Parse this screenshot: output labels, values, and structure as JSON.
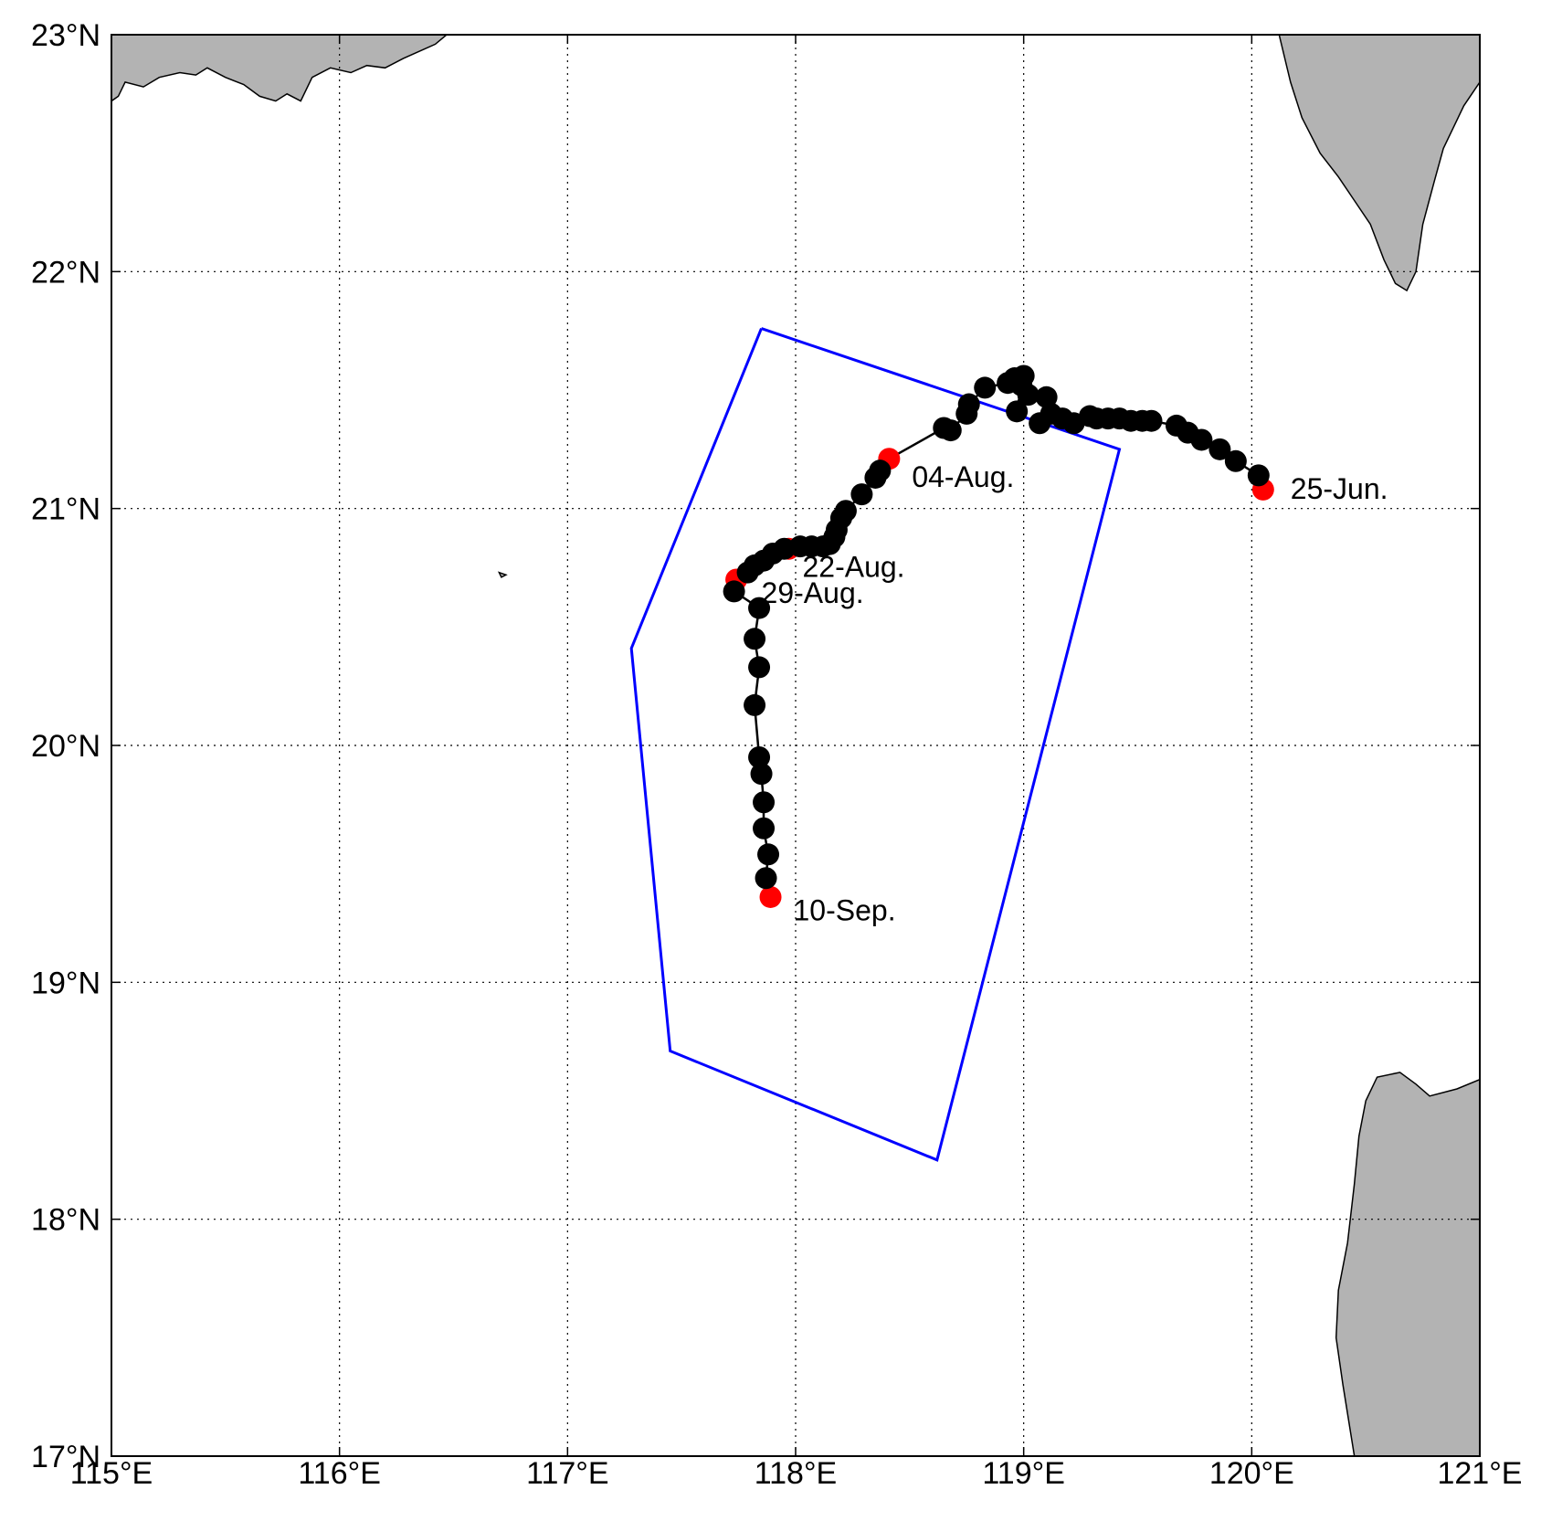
{
  "map": {
    "x_range": [
      115,
      121
    ],
    "y_range": [
      17,
      23
    ],
    "x_ticks": [
      {
        "value": 115,
        "label": "115°E"
      },
      {
        "value": 116,
        "label": "116°E"
      },
      {
        "value": 117,
        "label": "117°E"
      },
      {
        "value": 118,
        "label": "118°E"
      },
      {
        "value": 119,
        "label": "119°E"
      },
      {
        "value": 120,
        "label": "120°E"
      },
      {
        "value": 121,
        "label": "121°E"
      }
    ],
    "y_ticks": [
      {
        "value": 17,
        "label": "17°N"
      },
      {
        "value": 18,
        "label": "18°N"
      },
      {
        "value": 19,
        "label": "19°N"
      },
      {
        "value": 20,
        "label": "20°N"
      },
      {
        "value": 21,
        "label": "21°N"
      },
      {
        "value": 22,
        "label": "22°N"
      },
      {
        "value": 23,
        "label": "23°N"
      }
    ],
    "grid": "dotted",
    "colors": {
      "land": "#b3b3b3",
      "coastline": "#000000",
      "region": "#0000ff",
      "track": "#000000",
      "marker": "#000000",
      "highlight": "#ff0000",
      "grid": "#000000"
    },
    "region_polygon": [
      [
        117.85,
        21.76
      ],
      [
        119.42,
        21.25
      ],
      [
        118.62,
        18.25
      ],
      [
        117.45,
        18.71
      ],
      [
        117.28,
        20.41
      ],
      [
        117.85,
        21.76
      ]
    ],
    "track": [
      [
        120.05,
        21.08
      ],
      [
        120.03,
        21.14
      ],
      [
        119.93,
        21.2
      ],
      [
        119.86,
        21.25
      ],
      [
        119.78,
        21.29
      ],
      [
        119.72,
        21.32
      ],
      [
        119.67,
        21.35
      ],
      [
        119.56,
        21.37
      ],
      [
        119.52,
        21.37
      ],
      [
        119.47,
        21.37
      ],
      [
        119.42,
        21.38
      ],
      [
        119.37,
        21.38
      ],
      [
        119.32,
        21.38
      ],
      [
        119.29,
        21.39
      ],
      [
        119.22,
        21.36
      ],
      [
        119.17,
        21.38
      ],
      [
        119.12,
        21.4
      ],
      [
        119.07,
        21.36
      ],
      [
        119.1,
        21.47
      ],
      [
        119.02,
        21.48
      ],
      [
        118.97,
        21.41
      ],
      [
        118.99,
        21.52
      ],
      [
        119.0,
        21.56
      ],
      [
        118.96,
        21.55
      ],
      [
        118.93,
        21.53
      ],
      [
        118.83,
        21.51
      ],
      [
        118.76,
        21.44
      ],
      [
        118.75,
        21.4
      ],
      [
        118.68,
        21.33
      ],
      [
        118.65,
        21.34
      ],
      [
        118.41,
        21.21
      ],
      [
        118.37,
        21.16
      ],
      [
        118.35,
        21.13
      ],
      [
        118.29,
        21.06
      ],
      [
        118.22,
        20.99
      ],
      [
        118.2,
        20.96
      ],
      [
        118.18,
        20.91
      ],
      [
        118.17,
        20.88
      ],
      [
        118.15,
        20.85
      ],
      [
        118.12,
        20.84
      ],
      [
        118.07,
        20.84
      ],
      [
        118.02,
        20.84
      ],
      [
        117.95,
        20.83
      ],
      [
        117.9,
        20.81
      ],
      [
        117.86,
        20.78
      ],
      [
        117.82,
        20.76
      ],
      [
        117.79,
        20.73
      ],
      [
        117.74,
        20.7
      ],
      [
        117.73,
        20.65
      ],
      [
        117.84,
        20.58
      ],
      [
        117.82,
        20.45
      ],
      [
        117.84,
        20.33
      ],
      [
        117.82,
        20.17
      ],
      [
        117.84,
        19.95
      ],
      [
        117.85,
        19.88
      ],
      [
        117.86,
        19.76
      ],
      [
        117.86,
        19.65
      ],
      [
        117.88,
        19.54
      ],
      [
        117.87,
        19.44
      ],
      [
        117.89,
        19.36
      ]
    ],
    "highlight_points": [
      {
        "lon": 120.05,
        "lat": 21.08,
        "label": "25-Jun.",
        "dx": 0.12,
        "dy": -0.0
      },
      {
        "lon": 118.41,
        "lat": 21.21,
        "label": "04-Aug.",
        "dx": 0.1,
        "dy": -0.08
      },
      {
        "lon": 117.97,
        "lat": 20.83,
        "label": "22-Aug.",
        "dx": 0.06,
        "dy": -0.08
      },
      {
        "lon": 117.74,
        "lat": 20.7,
        "label": "29-Aug.",
        "dx": 0.11,
        "dy": -0.06
      },
      {
        "lon": 117.89,
        "lat": 19.36,
        "label": "10-Sep.",
        "dx": 0.1,
        "dy": -0.06
      }
    ],
    "land_masses": [
      {
        "name": "south-china-coast",
        "points": [
          [
            115.0,
            22.72
          ],
          [
            115.03,
            22.74
          ],
          [
            115.06,
            22.8
          ],
          [
            115.14,
            22.78
          ],
          [
            115.21,
            22.82
          ],
          [
            115.3,
            22.84
          ],
          [
            115.37,
            22.83
          ],
          [
            115.42,
            22.86
          ],
          [
            115.5,
            22.82
          ],
          [
            115.58,
            22.79
          ],
          [
            115.65,
            22.74
          ],
          [
            115.72,
            22.72
          ],
          [
            115.77,
            22.75
          ],
          [
            115.83,
            22.72
          ],
          [
            115.88,
            22.82
          ],
          [
            115.96,
            22.86
          ],
          [
            116.05,
            22.84
          ],
          [
            116.12,
            22.87
          ],
          [
            116.2,
            22.86
          ],
          [
            116.28,
            22.9
          ],
          [
            116.35,
            22.93
          ],
          [
            116.42,
            22.96
          ],
          [
            116.47,
            23.0
          ],
          [
            115.0,
            23.0
          ]
        ]
      },
      {
        "name": "taiwan",
        "points": [
          [
            120.12,
            23.0
          ],
          [
            120.17,
            22.8
          ],
          [
            120.22,
            22.65
          ],
          [
            120.3,
            22.5
          ],
          [
            120.38,
            22.4
          ],
          [
            120.45,
            22.3
          ],
          [
            120.52,
            22.2
          ],
          [
            120.58,
            22.05
          ],
          [
            120.63,
            21.95
          ],
          [
            120.68,
            21.92
          ],
          [
            120.72,
            22.0
          ],
          [
            120.75,
            22.2
          ],
          [
            120.8,
            22.38
          ],
          [
            120.84,
            22.52
          ],
          [
            120.93,
            22.7
          ],
          [
            121.0,
            22.8
          ],
          [
            121.0,
            23.0
          ]
        ]
      },
      {
        "name": "luzon",
        "points": [
          [
            120.45,
            17.0
          ],
          [
            120.4,
            17.3
          ],
          [
            120.37,
            17.5
          ],
          [
            120.38,
            17.7
          ],
          [
            120.42,
            17.9
          ],
          [
            120.45,
            18.15
          ],
          [
            120.47,
            18.35
          ],
          [
            120.5,
            18.5
          ],
          [
            120.55,
            18.6
          ],
          [
            120.65,
            18.62
          ],
          [
            120.72,
            18.57
          ],
          [
            120.78,
            18.52
          ],
          [
            120.9,
            18.55
          ],
          [
            121.0,
            18.59
          ],
          [
            121.0,
            17.0
          ]
        ]
      },
      {
        "name": "islet",
        "points": [
          [
            116.7,
            20.73
          ],
          [
            116.73,
            20.72
          ],
          [
            116.71,
            20.71
          ]
        ]
      }
    ]
  }
}
